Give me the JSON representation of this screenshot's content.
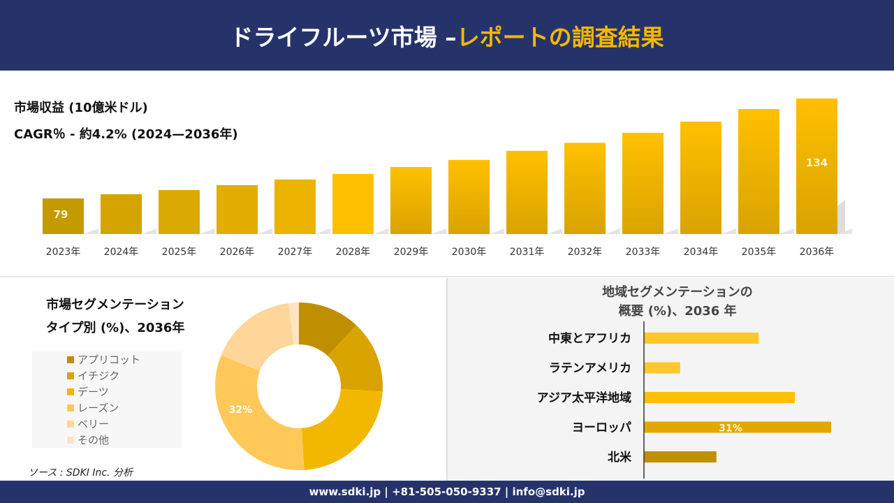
{
  "header": {
    "title_part1": "ドライフルーツ市場 –",
    "title_part2": "レポートの調査結果"
  },
  "revenue": {
    "title": "市場収益 (10億米ドル)",
    "cagr": "CAGR％ - 約4.2% (2024—2036年)"
  },
  "segment": {
    "title_line1": "市場セグメンテーション",
    "title_line2": "タイプ別 (%)、2036年"
  },
  "region": {
    "title_line1": "地域セグメンテーションの",
    "title_line2": "概要 (%)、2036 年"
  },
  "source": "ソース : SDKI Inc. 分析",
  "footer": "www.sdki.jp | +81-505-050-9337 | info@sdki.jp",
  "chart_data": [
    {
      "type": "bar",
      "title": "市場収益 (10億米ドル)",
      "categories": [
        "2023年",
        "2024年",
        "2025年",
        "2026年",
        "2027年",
        "2028年",
        "2029年",
        "2030年",
        "2031年",
        "2032年",
        "2033年",
        "2034年",
        "2035年",
        "2036年"
      ],
      "values": [
        79,
        81.3,
        83.6,
        86.3,
        89.4,
        92.5,
        96.3,
        100.2,
        105.2,
        109.6,
        115.1,
        121.3,
        128.2,
        134
      ],
      "data_labels": {
        "0": "79",
        "13": "134"
      },
      "colors": [
        "#c49a00",
        "#d4a500",
        "#dbaa00",
        "#e0ad00",
        "#ebb400",
        "#ffc000",
        "#f7bb00",
        "#f7bb00",
        "#f7bb00",
        "#f7bb00",
        "#f7bb00",
        "#f7bb00",
        "#f7bb00",
        "#f7bb00"
      ],
      "grid": false
    },
    {
      "type": "pie",
      "title": "市場セグメンテーション タイプ別 (%)、2036年",
      "labels": [
        "アプリコット",
        "イチジク",
        "デーツ",
        "レーズン",
        "ベリー",
        "その他"
      ],
      "values": [
        12,
        14,
        23,
        32,
        17,
        2
      ],
      "data_labels": {
        "3": "32%"
      },
      "colors": [
        "#bf8f00",
        "#d9a300",
        "#f2b800",
        "#ffc859",
        "#ffd699",
        "#ffe4c2"
      ],
      "legend": "left"
    },
    {
      "type": "bar",
      "orientation": "horizontal",
      "title": "地域セグメンテーションの 概要 (%)、2036 年",
      "categories": [
        "中東とアフリカ",
        "ラテンアメリカ",
        "アジア太平洋地域",
        "ヨーロッパ",
        "北米"
      ],
      "values": [
        19,
        6,
        25,
        31,
        12
      ],
      "data_labels": {
        "3": "31%"
      },
      "colors": [
        "#ffc82c",
        "#ffc82c",
        "#ffc000",
        "#e0a800",
        "#bf9000"
      ]
    }
  ]
}
